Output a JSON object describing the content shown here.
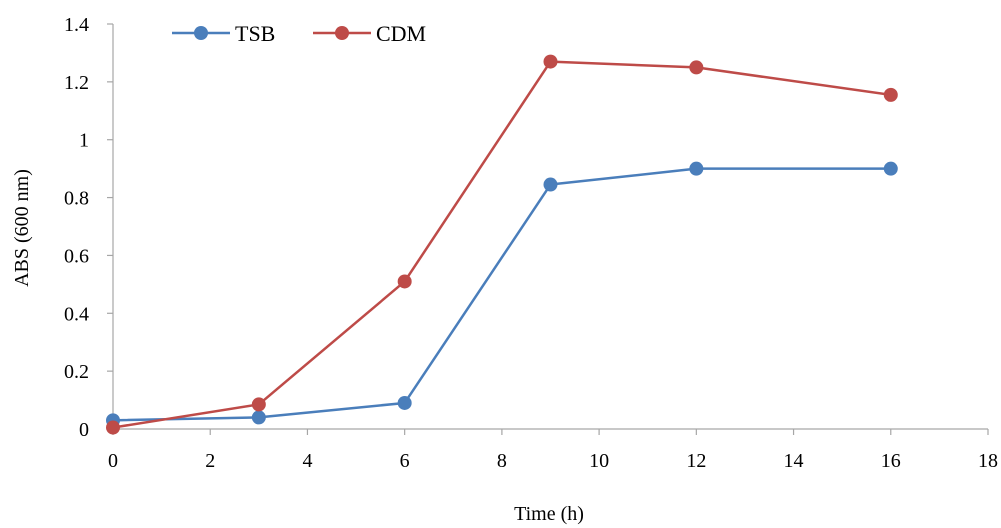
{
  "chart_data": {
    "type": "line",
    "title": "",
    "xlabel": "Time (h)",
    "ylabel": "ABS (600 nm)",
    "xlim": [
      0,
      18
    ],
    "ylim": [
      0,
      1.4
    ],
    "x_ticks": [
      0,
      2,
      4,
      6,
      8,
      10,
      12,
      14,
      16,
      18
    ],
    "x_tick_labels": [
      "0",
      "2",
      "4",
      "6",
      "8",
      "10",
      "12",
      "14",
      "16",
      "18"
    ],
    "y_ticks": [
      0,
      0.2,
      0.4,
      0.6,
      0.8,
      1,
      1.2,
      1.4
    ],
    "y_tick_labels": [
      "0",
      "0.2",
      "0.4",
      "0.6",
      "0.8",
      "1",
      "1.2",
      "1.4"
    ],
    "grid": false,
    "legend_position": "top-left",
    "series": [
      {
        "name": "TSB",
        "color": "#4a7ebb",
        "x": [
          0,
          3,
          6,
          9,
          12,
          16
        ],
        "y": [
          0.03,
          0.04,
          0.09,
          0.845,
          0.9,
          0.9
        ]
      },
      {
        "name": "CDM",
        "color": "#be4b48",
        "x": [
          0,
          3,
          6,
          9,
          12,
          16
        ],
        "y": [
          0.005,
          0.085,
          0.51,
          1.27,
          1.25,
          1.155
        ]
      }
    ]
  }
}
